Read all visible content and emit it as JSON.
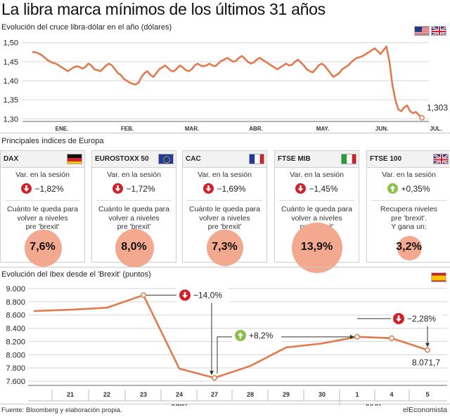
{
  "headline": "La libra marca mínimos de los últimos 31 años",
  "gbp": {
    "subtitle": "Evolución del cruce libra-dólar en el año (dólares)",
    "last_value_label": "1,303",
    "flags": [
      "us-flag",
      "uk-flag"
    ]
  },
  "indices": {
    "subtitle": "Principales índices de Europa",
    "cards": [
      {
        "name": "DAX",
        "flag": "germany-flag",
        "session_label": "Var. en la sesión",
        "direction": "down",
        "session_change": "−1,82%",
        "note": [
          "Cuánto le queda para",
          "volver a niveles",
          "pre 'brexit'"
        ],
        "value": "7,6%",
        "value_num": 7.6
      },
      {
        "name": "EUROSTOXX 50",
        "flag": "eu-flag",
        "session_label": "Var. en la sesión",
        "direction": "down",
        "session_change": "−1,72%",
        "note": [
          "Cuánto le queda para",
          "volver a niveles",
          "pre 'brexit'"
        ],
        "value": "8,0%",
        "value_num": 8.0
      },
      {
        "name": "CAC",
        "flag": "france-flag",
        "session_label": "Var. en la sesión",
        "direction": "down",
        "session_change": "−1,69%",
        "note": [
          "Cuánto le queda para",
          "volver a niveles",
          "pre 'brexit'"
        ],
        "value": "7,3%",
        "value_num": 7.3
      },
      {
        "name": "FTSE MIB",
        "flag": "italy-flag",
        "session_label": "Var. en la sesión",
        "direction": "down",
        "session_change": "−1,45%",
        "note": [
          "Cuánto le queda para",
          "volver a niveles",
          "pre 'brexit'"
        ],
        "value": "13,9%",
        "value_num": 13.9
      },
      {
        "name": "FTSE 100",
        "flag": "uk-flag",
        "session_label": "Var. en la sesión",
        "direction": "up",
        "session_change": "+0,35%",
        "note": [
          "Recupera niveles",
          "pre 'brexit'.",
          "Y gana un:"
        ],
        "value": "3,2%",
        "value_num": 3.2
      }
    ]
  },
  "ibex": {
    "subtitle": "Evolución del Ibex desde el 'Brexit' (puntos)",
    "flag": "spain-flag",
    "last_value_label": "8.071,7",
    "annotations": [
      {
        "direction": "down",
        "text": "−14,0%"
      },
      {
        "direction": "up",
        "text": "+8,2%"
      },
      {
        "direction": "down",
        "text": "−2,28%"
      }
    ],
    "month_labels": [
      "JUNIO",
      "JULIO"
    ]
  },
  "chart_data": [
    {
      "type": "line",
      "title": "",
      "xlabel": "",
      "ylabel": "",
      "ylim": [
        1.28,
        1.52
      ],
      "yticks": [
        "1,50",
        "1,45",
        "1,40",
        "1,35",
        "1,30"
      ],
      "ytick_values": [
        1.5,
        1.45,
        1.4,
        1.35,
        1.3
      ],
      "xticks": [
        "ENE.",
        "FEB.",
        "MAR.",
        "ABR.",
        "MAY.",
        "JUN.",
        "JUL."
      ],
      "grid": true,
      "series": [
        {
          "values": [
            1.475,
            1.475,
            1.472,
            1.468,
            1.462,
            1.455,
            1.45,
            1.447,
            1.445,
            1.44,
            1.435,
            1.43,
            1.425,
            1.43,
            1.435,
            1.438,
            1.436,
            1.432,
            1.436,
            1.445,
            1.44,
            1.43,
            1.428,
            1.425,
            1.432,
            1.44,
            1.445,
            1.44,
            1.43,
            1.42,
            1.415,
            1.405,
            1.4,
            1.395,
            1.392,
            1.39,
            1.395,
            1.41,
            1.42,
            1.425,
            1.415,
            1.41,
            1.42,
            1.43,
            1.435,
            1.44,
            1.433,
            1.426,
            1.425,
            1.432,
            1.44,
            1.435,
            1.428,
            1.425,
            1.43,
            1.44,
            1.445,
            1.44,
            1.438,
            1.44,
            1.445,
            1.44,
            1.438,
            1.445,
            1.452,
            1.455,
            1.46,
            1.455,
            1.45,
            1.452,
            1.46,
            1.465,
            1.458,
            1.45,
            1.445,
            1.448,
            1.455,
            1.46,
            1.455,
            1.45,
            1.445,
            1.44,
            1.435,
            1.43,
            1.435,
            1.44,
            1.445,
            1.44,
            1.442,
            1.45,
            1.455,
            1.448,
            1.44,
            1.43,
            1.425,
            1.422,
            1.43,
            1.44,
            1.445,
            1.44,
            1.43,
            1.42,
            1.41,
            1.415,
            1.42,
            1.43,
            1.435,
            1.44,
            1.448,
            1.455,
            1.46,
            1.462,
            1.465,
            1.47,
            1.475,
            1.48,
            1.485,
            1.478,
            1.47,
            1.48,
            1.49,
            1.45,
            1.39,
            1.35,
            1.325,
            1.32,
            1.33,
            1.335,
            1.32,
            1.315,
            1.318,
            1.31,
            1.303
          ]
        }
      ]
    },
    {
      "type": "bar",
      "title": "",
      "categories": [
        "DAX",
        "EUROSTOXX 50",
        "CAC",
        "FTSE MIB",
        "FTSE 100"
      ],
      "values": [
        7.6,
        8.0,
        7.3,
        13.9,
        3.2
      ],
      "session_change": [
        -1.82,
        -1.72,
        -1.69,
        -1.45,
        0.35
      ]
    },
    {
      "type": "line",
      "title": "",
      "xlabel": "",
      "ylabel": "",
      "ylim": [
        7600,
        9000
      ],
      "yticks": [
        "9.000",
        "8.800",
        "8.600",
        "8.400",
        "8.200",
        "8.000",
        "7.800",
        "7.600"
      ],
      "ytick_values": [
        9000,
        8800,
        8600,
        8400,
        8200,
        8000,
        7800,
        7600
      ],
      "categories": [
        "",
        "21",
        "22",
        "23",
        "24",
        "27",
        "28",
        "29",
        "30",
        "1",
        "4",
        "5"
      ],
      "grid": true,
      "series": [
        {
          "values": [
            8660,
            8680,
            8710,
            8900,
            7790,
            7650,
            7830,
            8110,
            8170,
            8270,
            8250,
            8071.7
          ]
        }
      ]
    }
  ]
}
